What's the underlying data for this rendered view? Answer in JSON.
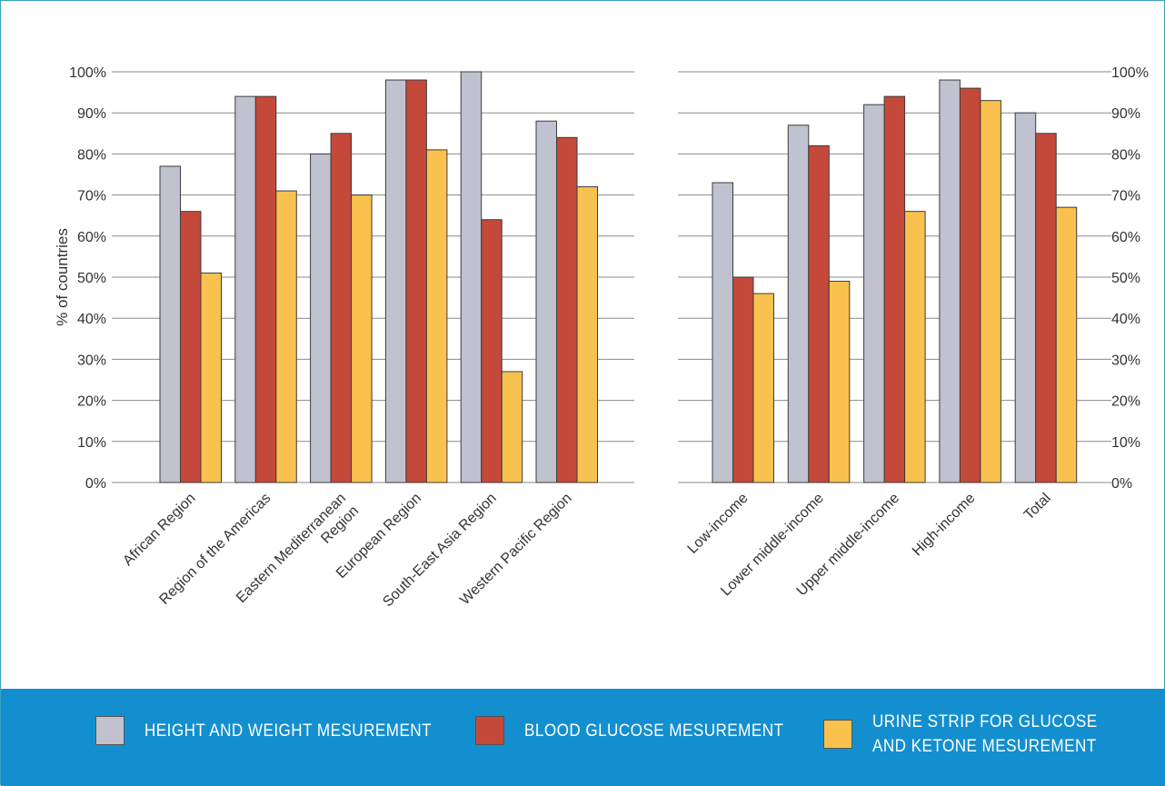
{
  "chart_data": [
    {
      "type": "bar",
      "ylabel": "% of countries",
      "ylim": [
        0,
        100
      ],
      "y_ticks": [
        "0%",
        "10%",
        "20%",
        "30%",
        "40%",
        "50%",
        "60%",
        "70%",
        "80%",
        "90%",
        "100%"
      ],
      "y_axis_side": "left",
      "grid": true,
      "categories": [
        [
          "African Region"
        ],
        [
          "Region of the Americas"
        ],
        [
          "Eastern Mediterranean",
          "Region"
        ],
        [
          "European Region"
        ],
        [
          "South-East Asia Region"
        ],
        [
          "Western Pacific Region"
        ]
      ],
      "series": [
        {
          "name": "Height and weight mesurement",
          "color": "#c0c2cf",
          "values": [
            77,
            94,
            80,
            98,
            100,
            88
          ]
        },
        {
          "name": "Blood glucose mesurement",
          "color": "#c4493a",
          "values": [
            66,
            94,
            85,
            98,
            64,
            84
          ]
        },
        {
          "name": "Urine strip for glucose and ketone mesurement",
          "color": "#f9c24e",
          "values": [
            51,
            71,
            70,
            81,
            27,
            72
          ]
        }
      ]
    },
    {
      "type": "bar",
      "ylabel": "",
      "ylim": [
        0,
        100
      ],
      "y_ticks": [
        "0%",
        "10%",
        "20%",
        "30%",
        "40%",
        "50%",
        "60%",
        "70%",
        "80%",
        "90%",
        "100%"
      ],
      "y_axis_side": "right",
      "grid": true,
      "categories": [
        [
          "Low-income"
        ],
        [
          "Lower middle-income"
        ],
        [
          "Upper middle-income"
        ],
        [
          "High-income"
        ],
        [
          "Total"
        ]
      ],
      "series": [
        {
          "name": "Height and weight mesurement",
          "color": "#c0c2cf",
          "values": [
            73,
            87,
            92,
            98,
            90
          ]
        },
        {
          "name": "Blood glucose mesurement",
          "color": "#c4493a",
          "values": [
            50,
            82,
            94,
            96,
            85
          ]
        },
        {
          "name": "Urine strip for glucose and ketone mesurement",
          "color": "#f9c24e",
          "values": [
            46,
            49,
            66,
            93,
            67
          ]
        }
      ]
    }
  ],
  "legend": {
    "placement": "bottom",
    "background": "#138fcf",
    "items": [
      {
        "lines": [
          "Height and weight mesurement"
        ],
        "color": "#c0c2cf"
      },
      {
        "lines": [
          "Blood glucose mesurement"
        ],
        "color": "#c4493a"
      },
      {
        "lines": [
          "Urine strip for glucose",
          "and ketone mesurement"
        ],
        "color": "#f9c24e"
      }
    ]
  }
}
